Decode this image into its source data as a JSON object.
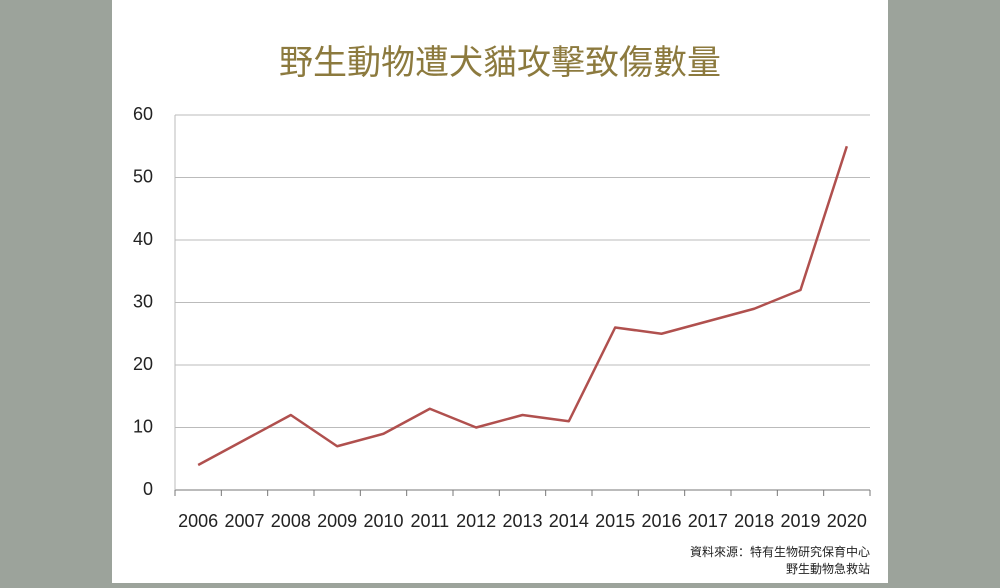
{
  "chart_data": {
    "type": "line",
    "title": "野生動物遭犬貓攻擊致傷數量",
    "categories": [
      "2006",
      "2007",
      "2008",
      "2009",
      "2010",
      "2011",
      "2012",
      "2013",
      "2014",
      "2015",
      "2016",
      "2017",
      "2018",
      "2019",
      "2020"
    ],
    "series": [
      {
        "name": "野生動物遭犬貓攻擊致傷數量",
        "color": "#b0504e",
        "values": [
          4,
          8,
          12,
          7,
          9,
          13,
          10,
          12,
          11,
          26,
          25,
          27,
          29,
          32,
          55
        ]
      }
    ],
    "ylim": [
      0,
      60
    ],
    "yticks": [
      0,
      10,
      20,
      30,
      40,
      50,
      60
    ],
    "grid": true,
    "source": [
      "資料來源：特有生物研究保育中心",
      "野生動物急救站"
    ]
  }
}
